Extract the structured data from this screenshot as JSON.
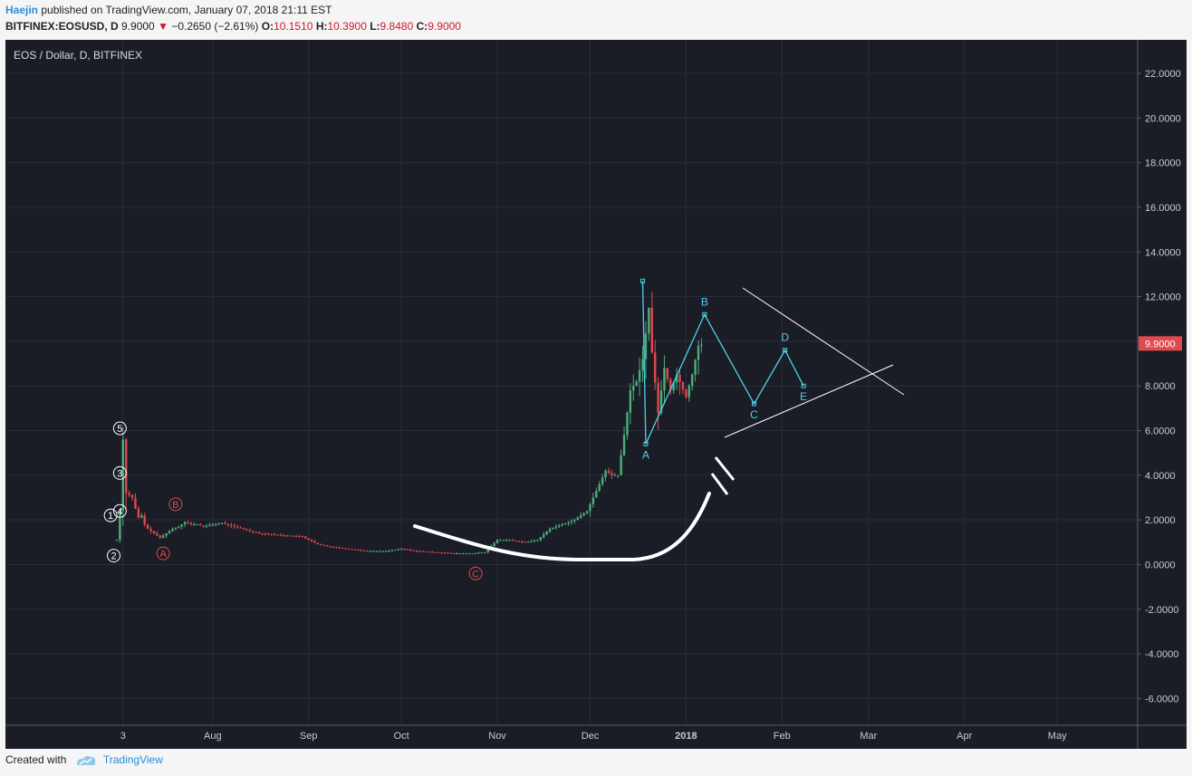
{
  "header": {
    "author": "Haejin",
    "published": " published on TradingView.com, January 07, 2018 21:11 EST",
    "symbol": "BITFINEX:EOSUSD, D",
    "price": "9.9000",
    "arrow": "▼",
    "change": "−0.2650 (−2.61%)",
    "o_label": "O:",
    "o_value": "10.1510",
    "h_label": "H:",
    "h_value": "10.3900",
    "l_label": "L:",
    "l_value": "9.8480",
    "c_label": "C:",
    "c_value": "9.9000"
  },
  "chart_title": "EOS / Dollar, D, BITFINEX",
  "current_price_label": "9.9000",
  "footer": {
    "created_with": "Created with",
    "brand": "TradingView"
  },
  "colors": {
    "background": "#1a1c26",
    "grid": "#2a2d39",
    "up": "#4caf7a",
    "down": "#e0494f",
    "wave": "#4dd2e6",
    "white": "#ffffff",
    "count_red": "#e0494f",
    "price_tag": "#e0494f"
  },
  "chart_data": {
    "type": "candlestick",
    "yticks": [
      "22.0000",
      "20.0000",
      "18.0000",
      "16.0000",
      "14.0000",
      "12.0000",
      "9.9000",
      "8.0000",
      "6.0000",
      "4.0000",
      "2.0000",
      "0.0000",
      "-2.0000",
      "-4.0000",
      "-6.0000"
    ],
    "ytick_values": [
      22,
      20,
      18,
      16,
      14,
      12,
      10,
      8,
      6,
      4,
      2,
      0,
      -2,
      -4,
      -6
    ],
    "xticks": [
      {
        "label": "3",
        "date": "2017-07-03",
        "bold": false
      },
      {
        "label": "Aug",
        "date": "2017-08-01",
        "bold": false
      },
      {
        "label": "Sep",
        "date": "2017-09-01",
        "bold": false
      },
      {
        "label": "Oct",
        "date": "2017-10-01",
        "bold": false
      },
      {
        "label": "Nov",
        "date": "2017-11-01",
        "bold": false
      },
      {
        "label": "Dec",
        "date": "2017-12-01",
        "bold": false
      },
      {
        "label": "2018",
        "date": "2018-01-01",
        "bold": true
      },
      {
        "label": "Feb",
        "date": "2018-02-01",
        "bold": false
      },
      {
        "label": "Mar",
        "date": "2018-03-01",
        "bold": false
      },
      {
        "label": "Apr",
        "date": "2018-04-01",
        "bold": false
      },
      {
        "label": "May",
        "date": "2018-05-01",
        "bold": false
      }
    ],
    "xlim": [
      "2017-05-26",
      "2018-05-27"
    ],
    "ylim": [
      -7.2,
      23.5
    ],
    "price_path": [
      [
        "2017-07-01",
        1.1
      ],
      [
        "2017-07-02",
        2.4
      ],
      [
        "2017-07-03",
        5.6
      ],
      [
        "2017-07-04",
        3.2
      ],
      [
        "2017-07-05",
        3.1
      ],
      [
        "2017-07-06",
        3.0
      ],
      [
        "2017-07-07",
        2.5
      ],
      [
        "2017-07-08",
        2.1
      ],
      [
        "2017-07-09",
        2.2
      ],
      [
        "2017-07-10",
        1.8
      ],
      [
        "2017-07-11",
        1.6
      ],
      [
        "2017-07-13",
        1.4
      ],
      [
        "2017-07-15",
        1.2
      ],
      [
        "2017-07-17",
        1.4
      ],
      [
        "2017-07-19",
        1.6
      ],
      [
        "2017-07-21",
        1.7
      ],
      [
        "2017-07-23",
        1.9
      ],
      [
        "2017-07-25",
        1.8
      ],
      [
        "2017-07-27",
        1.8
      ],
      [
        "2017-07-29",
        1.7
      ],
      [
        "2017-08-01",
        1.8
      ],
      [
        "2017-08-04",
        1.85
      ],
      [
        "2017-08-08",
        1.7
      ],
      [
        "2017-08-12",
        1.55
      ],
      [
        "2017-08-16",
        1.4
      ],
      [
        "2017-08-20",
        1.35
      ],
      [
        "2017-08-25",
        1.3
      ],
      [
        "2017-08-30",
        1.25
      ],
      [
        "2017-09-04",
        0.9
      ],
      [
        "2017-09-08",
        0.8
      ],
      [
        "2017-09-14",
        0.7
      ],
      [
        "2017-09-20",
        0.6
      ],
      [
        "2017-09-26",
        0.6
      ],
      [
        "2017-10-01",
        0.7
      ],
      [
        "2017-10-06",
        0.6
      ],
      [
        "2017-10-12",
        0.55
      ],
      [
        "2017-10-18",
        0.5
      ],
      [
        "2017-10-24",
        0.5
      ],
      [
        "2017-10-28",
        0.55
      ],
      [
        "2017-11-01",
        1.1
      ],
      [
        "2017-11-05",
        1.1
      ],
      [
        "2017-11-10",
        1.0
      ],
      [
        "2017-11-14",
        1.1
      ],
      [
        "2017-11-18",
        1.6
      ],
      [
        "2017-11-22",
        1.8
      ],
      [
        "2017-11-26",
        2.0
      ],
      [
        "2017-11-30",
        2.4
      ],
      [
        "2017-12-02",
        3.0
      ],
      [
        "2017-12-04",
        3.6
      ],
      [
        "2017-12-06",
        4.2
      ],
      [
        "2017-12-08",
        4.0
      ],
      [
        "2017-12-10",
        4.0
      ],
      [
        "2017-12-12",
        5.8
      ],
      [
        "2017-12-14",
        7.8
      ],
      [
        "2017-12-16",
        8.2
      ],
      [
        "2017-12-18",
        9.2
      ],
      [
        "2017-12-20",
        11.5
      ],
      [
        "2017-12-21",
        9.5
      ],
      [
        "2017-12-23",
        6.8
      ],
      [
        "2017-12-25",
        8.8
      ],
      [
        "2017-12-27",
        7.8
      ],
      [
        "2017-12-29",
        8.5
      ],
      [
        "2018-01-01",
        7.5
      ],
      [
        "2018-01-03",
        8.5
      ],
      [
        "2018-01-05",
        9.8
      ],
      [
        "2018-01-07",
        9.9
      ]
    ],
    "elliott_labels_white": [
      {
        "label": "5",
        "date": "2017-07-02",
        "y": 6.1
      },
      {
        "label": "3",
        "date": "2017-07-02",
        "y": 4.1
      },
      {
        "label": "1",
        "date": "2017-06-29",
        "y": 2.2
      },
      {
        "label": "4",
        "date": "2017-07-02",
        "y": 2.4
      },
      {
        "label": "2",
        "date": "2017-06-30",
        "y": 0.4
      }
    ],
    "elliott_labels_red": [
      {
        "label": "A",
        "date": "2017-07-16",
        "y": 0.5
      },
      {
        "label": "B",
        "date": "2017-07-20",
        "y": 2.7
      },
      {
        "label": "C",
        "date": "2017-10-25",
        "y": -0.4
      }
    ],
    "triangle_wave": [
      {
        "label": "A",
        "date": "2017-12-19",
        "y": 5.4
      },
      {
        "label": "B",
        "date": "2018-01-07",
        "y": 11.2
      },
      {
        "label": "C",
        "date": "2018-01-23",
        "y": 7.2
      },
      {
        "label": "D",
        "date": "2018-02-02",
        "y": 9.6
      },
      {
        "label": "E",
        "date": "2018-02-08",
        "y": 8.0
      }
    ]
  }
}
